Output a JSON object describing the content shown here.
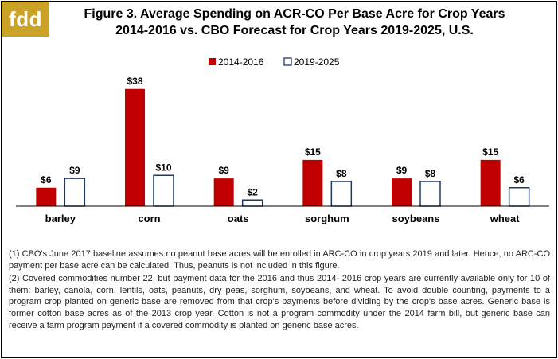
{
  "logo": {
    "text": "fdd",
    "color": "#c9a227"
  },
  "title": {
    "line1": "Figure 3. Average Spending on ACR-CO Per Base Acre for Crop Years",
    "line2": "2014-2016 vs. CBO Forecast for Crop Years 2019-2025, U.S."
  },
  "chart_data": {
    "type": "bar",
    "categories": [
      "barley",
      "corn",
      "oats",
      "sorghum",
      "soybeans",
      "wheat"
    ],
    "series": [
      {
        "name": "2014-2016",
        "values": [
          6,
          38,
          9,
          15,
          9,
          15
        ],
        "labels": [
          "$6",
          "$38",
          "$9",
          "$15",
          "$9",
          "$15"
        ],
        "color": "#c00000",
        "style": "filled"
      },
      {
        "name": "2019-2025",
        "values": [
          9,
          10,
          2,
          8,
          8,
          6
        ],
        "labels": [
          "$9",
          "$10",
          "$2",
          "$8",
          "$8",
          "$6"
        ],
        "color": "#1f3864",
        "style": "outline"
      }
    ],
    "ylim": [
      0,
      40
    ],
    "grid": false,
    "legend": "top-left"
  },
  "notes": [
    "(1) CBO's June 2017 baseline assumes no peanut base acres will be enrolled in ARC-CO in crop years 2019 and later. Hence, no ARC-CO payment per base acre can be calculated. Thus, peanuts is not included in this figure.",
    "(2) Covered commodities number 22, but payment data for the 2016 and thus 2014- 2016 crop years are currently available only for 10 of them: barley, canola, corn, lentils, oats, peanuts, dry peas, sorghum, soybeans, and wheat. To avoid double counting, payments to a program crop planted on generic base are removed from that crop's payments before dividing by the crop's base acres. Generic base is former cotton base acres as of the 2013 crop year. Cotton is not a program commodity under the 2014 farm bill, but generic base can receive a farm program payment if a covered commodity is planted on generic base acres."
  ]
}
